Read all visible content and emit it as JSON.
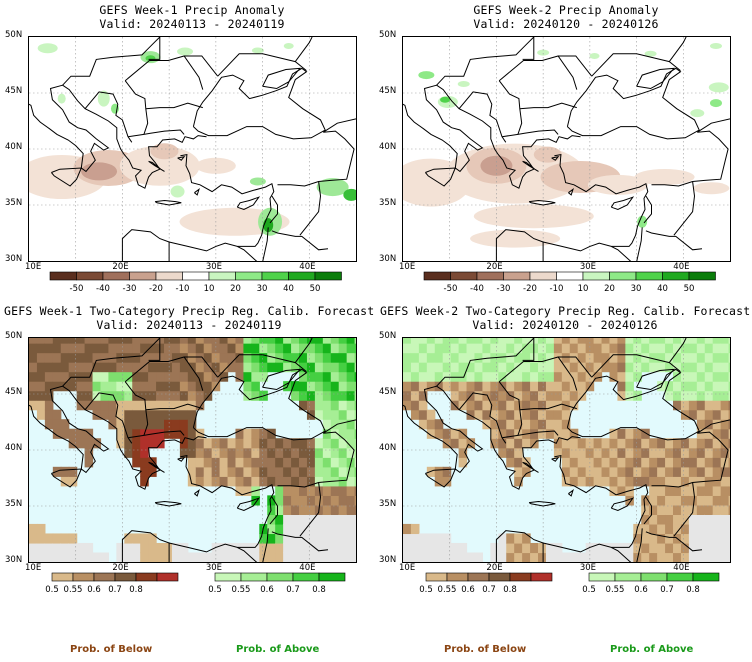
{
  "panels": [
    {
      "title1": "GEFS Week-1 Precip Anomaly",
      "title2": "Valid: 20240113 - 20240119",
      "kind": "anomaly",
      "x_ticks": [
        "10E",
        "20E",
        "30E",
        "40E"
      ],
      "y_ticks": [
        "50N",
        "45N",
        "40N",
        "35N",
        "30N"
      ]
    },
    {
      "title1": "GEFS Week-2 Precip Anomaly",
      "title2": "Valid: 20240120 - 20240126",
      "kind": "anomaly",
      "x_ticks": [
        "10E",
        "20E",
        "30E",
        "40E"
      ],
      "y_ticks": [
        "50N",
        "45N",
        "40N",
        "35N",
        "30N"
      ]
    },
    {
      "title1": "GEFS Week-1 Two-Category Precip Reg. Calib. Forecast",
      "title2": "Valid: 20240113 - 20240119",
      "kind": "prob",
      "x_ticks": [
        "10E",
        "20E",
        "30E",
        "40E"
      ],
      "y_ticks": [
        "50N",
        "45N",
        "40N",
        "35N",
        "30N"
      ]
    },
    {
      "title1": "GEFS Week-2 Two-Category Precip Reg. Calib. Forecast",
      "title2": "Valid: 20240120 - 20240126",
      "kind": "prob",
      "x_ticks": [
        "10E",
        "20E",
        "30E",
        "40E"
      ],
      "y_ticks": [
        "50N",
        "45N",
        "40N",
        "35N",
        "30N"
      ]
    }
  ],
  "anomaly_colorbar": {
    "labels": [
      "-50",
      "-40",
      "-30",
      "-20",
      "-10",
      "10",
      "20",
      "30",
      "40",
      "50"
    ],
    "colors": [
      "#5a2e1e",
      "#7b4a35",
      "#a0705c",
      "#c9a18e",
      "#ecd9cc",
      "#ffffff",
      "#c9f5c0",
      "#8ee987",
      "#4fd24a",
      "#1fa91f",
      "#0a7d0a"
    ]
  },
  "below_colorbar": {
    "labels": [
      "0.5",
      "0.55",
      "0.6",
      "0.7",
      "0.8"
    ],
    "colors": [
      "#d9b98a",
      "#b88f63",
      "#9c7555",
      "#7a5a3c",
      "#8a3b1f",
      "#b0302a"
    ]
  },
  "above_colorbar": {
    "labels": [
      "0.5",
      "0.55",
      "0.6",
      "0.7",
      "0.8"
    ],
    "colors": [
      "#c8f7b8",
      "#a6ee95",
      "#7edf6e",
      "#45cf42",
      "#16b41b"
    ]
  },
  "footer": {
    "below_label": "Prob. of Below",
    "above_label": "Prob. of Above",
    "below_color": "#8b4513",
    "above_color": "#1a9a1a"
  },
  "map_colors": {
    "sea_prob": "#e2fafd",
    "land_nodata": "#e6e6e6",
    "coast": "#000000",
    "grid": "#9a9a9a"
  }
}
